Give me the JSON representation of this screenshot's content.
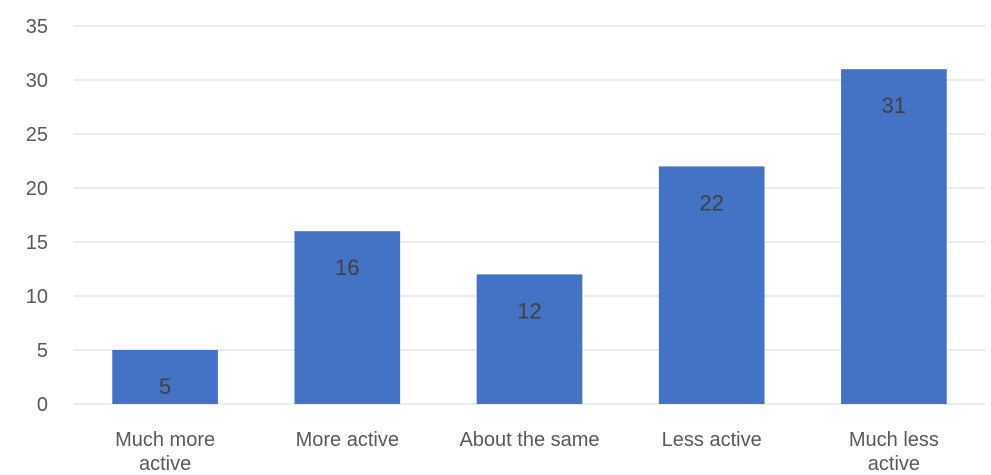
{
  "chart_data": {
    "type": "bar",
    "categories": [
      [
        "Much more",
        "active"
      ],
      [
        "More active"
      ],
      [
        "About the same"
      ],
      [
        "Less active"
      ],
      [
        "Much less",
        "active"
      ]
    ],
    "values": [
      5,
      16,
      12,
      22,
      31
    ],
    "ylim": [
      0,
      35
    ],
    "yticks": [
      0,
      5,
      10,
      15,
      20,
      25,
      30,
      35
    ],
    "grid": true,
    "data_labels": true,
    "bar_color": "#4472c4",
    "grid_color": "#d9d9d9",
    "tick_label_color": "#595959",
    "data_label_color": "#404040"
  }
}
